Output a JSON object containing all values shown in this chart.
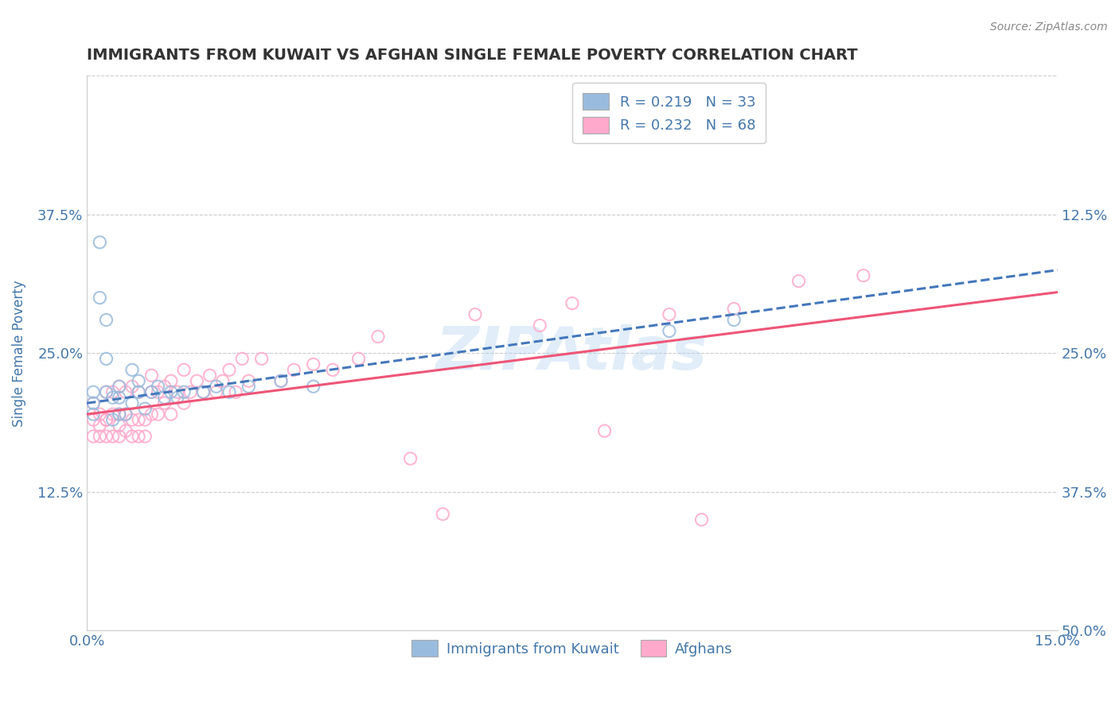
{
  "title": "IMMIGRANTS FROM KUWAIT VS AFGHAN SINGLE FEMALE POVERTY CORRELATION CHART",
  "source": "Source: ZipAtlas.com",
  "xlabel": "",
  "ylabel": "Single Female Poverty",
  "xlim": [
    0.0,
    0.15
  ],
  "ylim": [
    0.0,
    0.5
  ],
  "yticks": [
    0.0,
    0.125,
    0.25,
    0.375,
    0.5
  ],
  "ytick_labels_left": [
    "",
    "12.5%",
    "25.0%",
    "37.5%",
    ""
  ],
  "ytick_labels_right": [
    "50.0%",
    "37.5%",
    "25.0%",
    "12.5%",
    ""
  ],
  "xticks": [
    0.0,
    0.15
  ],
  "xtick_labels": [
    "0.0%",
    "15.0%"
  ],
  "background_color": "#ffffff",
  "watermark": "ZIPAtlas",
  "legend_labels": [
    "Immigrants from Kuwait",
    "Afghans"
  ],
  "r_kuwait": 0.219,
  "n_kuwait": 33,
  "r_afghan": 0.232,
  "n_afghan": 68,
  "color_kuwait": "#99BBDD",
  "color_afghan": "#FFAACC",
  "line_color_kuwait": "#4477BB",
  "line_color_afghan": "#EE5577",
  "title_color": "#333333",
  "axis_label_color": "#4477AA",
  "tick_color": "#4477AA",
  "kuwait_x": [
    0.001,
    0.001,
    0.001,
    0.002,
    0.002,
    0.003,
    0.003,
    0.003,
    0.004,
    0.004,
    0.005,
    0.005,
    0.005,
    0.006,
    0.007,
    0.007,
    0.008,
    0.008,
    0.009,
    0.01,
    0.011,
    0.012,
    0.013,
    0.014,
    0.015,
    0.018,
    0.02,
    0.022,
    0.025,
    0.03,
    0.035,
    0.09,
    0.1
  ],
  "kuwait_y": [
    0.205,
    0.215,
    0.195,
    0.35,
    0.3,
    0.28,
    0.245,
    0.215,
    0.19,
    0.21,
    0.21,
    0.22,
    0.195,
    0.195,
    0.205,
    0.235,
    0.215,
    0.225,
    0.2,
    0.215,
    0.22,
    0.21,
    0.215,
    0.21,
    0.215,
    0.215,
    0.22,
    0.215,
    0.22,
    0.225,
    0.22,
    0.27,
    0.28
  ],
  "afghan_x": [
    0.001,
    0.001,
    0.001,
    0.002,
    0.002,
    0.002,
    0.003,
    0.003,
    0.003,
    0.003,
    0.004,
    0.004,
    0.004,
    0.005,
    0.005,
    0.005,
    0.005,
    0.006,
    0.006,
    0.006,
    0.007,
    0.007,
    0.007,
    0.008,
    0.008,
    0.008,
    0.009,
    0.009,
    0.01,
    0.01,
    0.01,
    0.011,
    0.011,
    0.012,
    0.012,
    0.013,
    0.013,
    0.014,
    0.015,
    0.015,
    0.016,
    0.017,
    0.018,
    0.019,
    0.02,
    0.021,
    0.022,
    0.023,
    0.024,
    0.025,
    0.027,
    0.03,
    0.032,
    0.035,
    0.038,
    0.042,
    0.045,
    0.05,
    0.055,
    0.06,
    0.07,
    0.075,
    0.08,
    0.09,
    0.095,
    0.1,
    0.11,
    0.12
  ],
  "afghan_y": [
    0.205,
    0.19,
    0.175,
    0.195,
    0.185,
    0.175,
    0.19,
    0.175,
    0.215,
    0.19,
    0.195,
    0.175,
    0.215,
    0.185,
    0.195,
    0.175,
    0.22,
    0.195,
    0.18,
    0.215,
    0.19,
    0.175,
    0.22,
    0.19,
    0.175,
    0.215,
    0.19,
    0.175,
    0.195,
    0.215,
    0.23,
    0.195,
    0.215,
    0.205,
    0.22,
    0.195,
    0.225,
    0.215,
    0.205,
    0.235,
    0.215,
    0.225,
    0.215,
    0.23,
    0.215,
    0.225,
    0.235,
    0.215,
    0.245,
    0.225,
    0.245,
    0.225,
    0.235,
    0.24,
    0.235,
    0.245,
    0.265,
    0.155,
    0.105,
    0.285,
    0.275,
    0.295,
    0.18,
    0.285,
    0.1,
    0.29,
    0.315,
    0.32
  ]
}
